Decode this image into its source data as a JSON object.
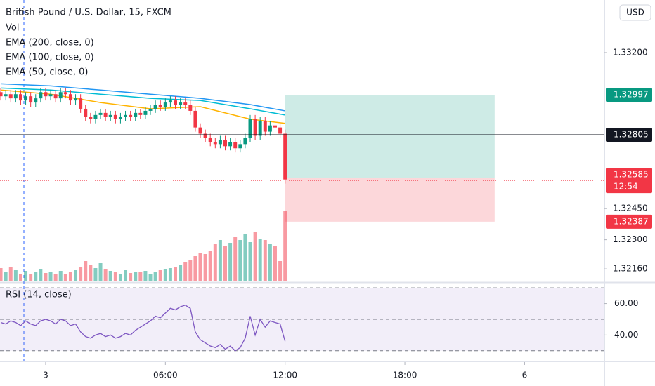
{
  "chart_data": [
    {
      "type": "candlestick",
      "title": "British Pound / U.S. Dollar, 15, FXCM",
      "currency": "USD",
      "x": [
        0,
        1,
        2,
        3,
        4,
        5,
        6,
        7,
        8,
        9,
        10,
        11,
        12,
        13,
        14,
        15,
        16,
        17,
        18,
        19,
        20,
        21,
        22,
        23,
        24,
        25,
        26,
        27,
        28,
        29,
        30,
        31,
        32,
        33,
        34,
        35,
        36,
        37,
        38,
        39,
        40,
        41,
        42,
        43,
        44,
        45,
        46,
        47,
        48,
        49,
        50,
        51,
        52,
        53,
        54,
        55,
        56,
        57
      ],
      "open": [
        1.3301,
        1.3299,
        1.33,
        1.3298,
        1.33,
        1.3297,
        1.3299,
        1.3296,
        1.3298,
        1.3301,
        1.3299,
        1.33,
        1.3298,
        1.3301,
        1.33,
        1.3297,
        1.3298,
        1.3293,
        1.3289,
        1.3288,
        1.329,
        1.3291,
        1.3289,
        1.329,
        1.3288,
        1.3289,
        1.329,
        1.3289,
        1.3291,
        1.329,
        1.3292,
        1.3293,
        1.3295,
        1.3294,
        1.3296,
        1.3297,
        1.3295,
        1.3296,
        1.3295,
        1.3292,
        1.3284,
        1.3281,
        1.3279,
        1.3277,
        1.3276,
        1.3278,
        1.3275,
        1.3277,
        1.3274,
        1.3276,
        1.3279,
        1.3288,
        1.328,
        1.3287,
        1.3282,
        1.3285,
        1.3284,
        1.3281
      ],
      "high": [
        1.3303,
        1.3302,
        1.3302,
        1.3302,
        1.3302,
        1.3301,
        1.3301,
        1.33,
        1.3303,
        1.3303,
        1.3302,
        1.3302,
        1.3303,
        1.3303,
        1.3302,
        1.33,
        1.33,
        1.3295,
        1.3291,
        1.3292,
        1.3293,
        1.3293,
        1.3292,
        1.3292,
        1.3291,
        1.3292,
        1.3292,
        1.3293,
        1.3293,
        1.3294,
        1.3295,
        1.3297,
        1.3297,
        1.3298,
        1.3299,
        1.3299,
        1.3298,
        1.3298,
        1.3297,
        1.3294,
        1.3286,
        1.3283,
        1.3281,
        1.3279,
        1.328,
        1.328,
        1.3279,
        1.3279,
        1.3278,
        1.3281,
        1.329,
        1.329,
        1.3289,
        1.3289,
        1.3287,
        1.3287,
        1.3286,
        1.3283
      ],
      "low": [
        1.3297,
        1.3297,
        1.3296,
        1.3296,
        1.3295,
        1.3295,
        1.3294,
        1.3294,
        1.3296,
        1.3297,
        1.3297,
        1.3296,
        1.3296,
        1.3298,
        1.3295,
        1.3295,
        1.3291,
        1.3287,
        1.3286,
        1.3286,
        1.3288,
        1.3287,
        1.3287,
        1.3286,
        1.3286,
        1.3287,
        1.3287,
        1.3287,
        1.3288,
        1.3288,
        1.329,
        1.3291,
        1.3292,
        1.3292,
        1.3294,
        1.3293,
        1.3293,
        1.3293,
        1.329,
        1.3282,
        1.3279,
        1.3277,
        1.3275,
        1.3274,
        1.3274,
        1.3273,
        1.3273,
        1.3272,
        1.3272,
        1.3274,
        1.3277,
        1.3278,
        1.3278,
        1.328,
        1.328,
        1.3282,
        1.3279,
        1.3257
      ],
      "close": [
        1.3299,
        1.33,
        1.3298,
        1.33,
        1.3297,
        1.3299,
        1.3296,
        1.3298,
        1.3301,
        1.3299,
        1.33,
        1.3298,
        1.3301,
        1.33,
        1.3297,
        1.3298,
        1.3293,
        1.3289,
        1.3288,
        1.329,
        1.3291,
        1.3289,
        1.329,
        1.3288,
        1.3289,
        1.329,
        1.3289,
        1.3291,
        1.329,
        1.3292,
        1.3293,
        1.3295,
        1.3294,
        1.3296,
        1.3297,
        1.3295,
        1.3296,
        1.3295,
        1.3292,
        1.3284,
        1.3281,
        1.3279,
        1.3277,
        1.3276,
        1.3278,
        1.3275,
        1.3277,
        1.3274,
        1.3276,
        1.3279,
        1.3288,
        1.328,
        1.3287,
        1.3282,
        1.3285,
        1.3284,
        1.3281,
        1.3259
      ],
      "up_color": "#089981",
      "down_color": "#f23645",
      "lines": [
        {
          "name": "EMA (200, close, 0)",
          "color": "#2196f3",
          "x": [
            0,
            10,
            20,
            30,
            40,
            50,
            57
          ],
          "values": [
            1.3305,
            1.3304,
            1.3302,
            1.33,
            1.3298,
            1.3295,
            1.3292
          ]
        },
        {
          "name": "EMA (100, close, 0)",
          "color": "#00bcd4",
          "x": [
            0,
            10,
            20,
            30,
            40,
            50,
            57
          ],
          "values": [
            1.3303,
            1.3302,
            1.33,
            1.3298,
            1.3297,
            1.3293,
            1.329
          ]
        },
        {
          "name": "EMA (50, close, 0)",
          "color": "#ffb300",
          "x": [
            0,
            10,
            20,
            30,
            40,
            50,
            57
          ],
          "values": [
            1.3302,
            1.33,
            1.3296,
            1.3293,
            1.3294,
            1.3288,
            1.3286
          ]
        }
      ],
      "position": {
        "start": 57,
        "end": 99,
        "target": 1.32997,
        "entry": 1.32596,
        "stop": 1.32387
      },
      "crosshair": 1.32805,
      "last_price": 1.32585,
      "countdown": "12:54",
      "ylim": [
        1.32103,
        1.33453
      ],
      "yticks": [
        {
          "value": 1.332,
          "label": "1.33200"
        },
        {
          "value": 1.3245,
          "label": "1.32450"
        },
        {
          "value": 1.323,
          "label": "1.32300"
        },
        {
          "value": 1.3216,
          "label": "1.32160"
        }
      ],
      "xlim": [
        -0.15,
        121
      ],
      "xticks": [
        {
          "value": 9,
          "label": "3"
        },
        {
          "value": 33,
          "label": "06:00"
        },
        {
          "value": 57,
          "label": "12:00"
        },
        {
          "value": 81,
          "label": "18:00"
        },
        {
          "value": 105,
          "label": "6"
        }
      ]
    },
    {
      "type": "bar",
      "name": "Vol",
      "values": [
        18,
        12,
        20,
        15,
        10,
        14,
        9,
        13,
        16,
        11,
        12,
        10,
        14,
        9,
        12,
        15,
        20,
        28,
        22,
        18,
        25,
        16,
        14,
        12,
        10,
        15,
        11,
        13,
        12,
        14,
        10,
        12,
        15,
        16,
        18,
        20,
        22,
        26,
        30,
        35,
        40,
        38,
        42,
        52,
        58,
        50,
        54,
        62,
        58,
        66,
        55,
        70,
        60,
        58,
        52,
        50,
        28,
        100
      ],
      "ylim": [
        0,
        120
      ]
    },
    {
      "type": "line",
      "name": "RSI (14, close)",
      "color": "#7e57c2",
      "values": [
        48,
        47,
        49,
        48,
        46,
        49,
        47,
        46,
        49,
        50,
        49,
        47,
        50,
        49,
        46,
        47,
        42,
        39,
        38,
        40,
        41,
        39,
        40,
        38,
        39,
        41,
        40,
        43,
        45,
        47,
        49,
        52,
        51,
        54,
        57,
        56,
        58,
        59,
        57,
        42,
        37,
        35,
        33,
        32,
        34,
        31,
        33,
        30,
        32,
        38,
        52,
        40,
        50,
        45,
        49,
        48,
        47,
        36
      ],
      "levels": [
        70,
        50,
        30
      ],
      "ylim": [
        23.2,
        73.2
      ],
      "yticks": [
        {
          "value": 60,
          "label": "60.00"
        },
        {
          "value": 40,
          "label": "40.00"
        }
      ]
    }
  ]
}
